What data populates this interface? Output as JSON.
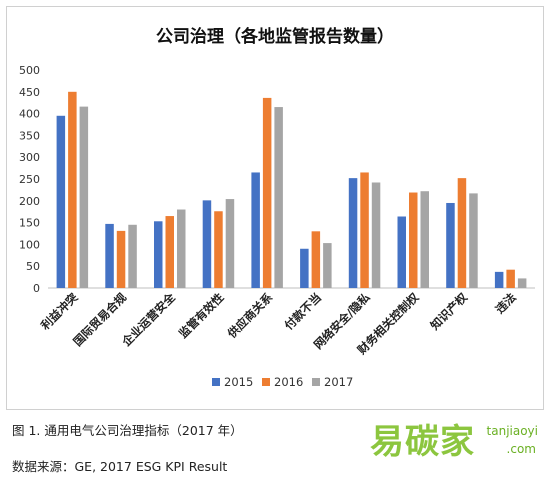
{
  "chart_data": {
    "type": "bar",
    "title": "公司治理（各地监管报告数量）",
    "categories": [
      "利益冲突",
      "国际贸易合规",
      "企业运营安全",
      "监管有效性",
      "供应商关系",
      "付款不当",
      "网络安全/隐私",
      "财务相关控制权",
      "知识产权",
      "违法"
    ],
    "series": [
      {
        "name": "2015",
        "color": "#4472c4",
        "values": [
          395,
          147,
          153,
          201,
          265,
          90,
          252,
          164,
          195,
          37
        ]
      },
      {
        "name": "2016",
        "color": "#ed7d31",
        "values": [
          450,
          131,
          165,
          176,
          436,
          130,
          265,
          219,
          252,
          42
        ]
      },
      {
        "name": "2017",
        "color": "#a5a5a5",
        "values": [
          416,
          145,
          180,
          204,
          415,
          103,
          242,
          222,
          217,
          22
        ]
      }
    ],
    "ylim": [
      0,
      500
    ],
    "yticks": [
      0,
      50,
      100,
      150,
      200,
      250,
      300,
      350,
      400,
      450,
      500
    ],
    "grid": false,
    "legend_position": "bottom"
  },
  "caption": "图 1.  通用电气公司治理指标（2017 年）",
  "source": "数据来源：GE, 2017 ESG KPI Result",
  "watermark": {
    "main": "易碳家",
    "sub": "tanjiaoyi",
    "sub2": ".com"
  }
}
